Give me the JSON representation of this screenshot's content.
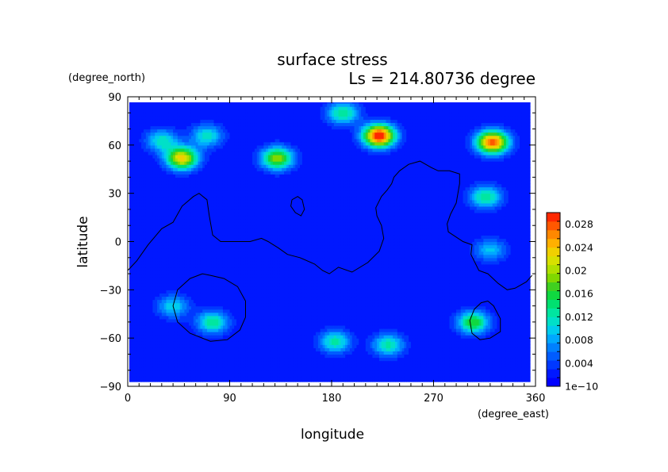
{
  "chart_data": {
    "type": "heatmap",
    "title": "surface stress",
    "subtitle": "Ls = 214.80736 degree",
    "xlabel": "longitude",
    "ylabel": "latitude",
    "x_unit": "(degree_east)",
    "y_unit": "(degree_north)",
    "xlim": [
      0,
      360
    ],
    "ylim": [
      -90,
      90
    ],
    "x_ticks": [
      "0",
      "90",
      "180",
      "270",
      "360"
    ],
    "y_ticks": [
      "90",
      "60",
      "30",
      "0",
      "−30",
      "−60",
      "−90"
    ],
    "colorbar": {
      "range": [
        0,
        0.03
      ],
      "ticks": [
        "1e−10",
        "0.004",
        "0.008",
        "0.012",
        "0.016",
        "0.02",
        "0.024",
        "0.028"
      ],
      "tick_values": [
        0,
        0.004,
        0.008,
        0.012,
        0.016,
        0.02,
        0.024,
        0.028
      ],
      "colors": [
        "#0000ff",
        "#0018ff",
        "#0038ff",
        "#005cff",
        "#0080ff",
        "#00a8ff",
        "#00ccee",
        "#00e0c8",
        "#00e6a0",
        "#00e070",
        "#10d840",
        "#40d020",
        "#80d800",
        "#b0e000",
        "#d8e000",
        "#f0d000",
        "#ffb000",
        "#ff8800",
        "#ff5800",
        "#ff2800"
      ]
    },
    "features": [
      {
        "name": "maximum",
        "lon": 222,
        "lat": 66,
        "value": 0.029
      },
      {
        "name": "maximum",
        "lon": 322,
        "lat": 62,
        "value": 0.027
      },
      {
        "name": "maximum",
        "lon": 48,
        "lat": 52,
        "value": 0.022
      },
      {
        "name": "maximum",
        "lon": 132,
        "lat": 52,
        "value": 0.018
      },
      {
        "name": "maximum",
        "lon": 190,
        "lat": 80,
        "value": 0.012
      },
      {
        "name": "maximum",
        "lon": 70,
        "lat": 66,
        "value": 0.01
      },
      {
        "name": "maximum",
        "lon": 305,
        "lat": -50,
        "value": 0.015
      },
      {
        "name": "maximum",
        "lon": 316,
        "lat": 28,
        "value": 0.012
      },
      {
        "name": "maximum",
        "lon": 75,
        "lat": -50,
        "value": 0.012
      },
      {
        "name": "maximum",
        "lon": 183,
        "lat": -62,
        "value": 0.011
      },
      {
        "name": "maximum",
        "lon": 230,
        "lat": -64,
        "value": 0.011
      },
      {
        "name": "maximum",
        "lon": 320,
        "lat": -5,
        "value": 0.008
      },
      {
        "name": "maximum",
        "lon": 30,
        "lat": 63,
        "value": 0.01
      },
      {
        "name": "maximum",
        "lon": 40,
        "lat": -40,
        "value": 0.009
      }
    ],
    "contours": [
      {
        "name": "topography-line",
        "points": [
          [
            0,
            -18
          ],
          [
            8,
            -12
          ],
          [
            18,
            -2
          ],
          [
            30,
            8
          ],
          [
            40,
            12
          ],
          [
            48,
            22
          ],
          [
            58,
            28
          ],
          [
            63,
            30
          ],
          [
            70,
            26
          ],
          [
            72,
            16
          ],
          [
            75,
            4
          ],
          [
            82,
            0
          ],
          [
            98,
            0
          ],
          [
            108,
            0
          ],
          [
            118,
            2
          ],
          [
            124,
            0
          ],
          [
            133,
            -4
          ],
          [
            141,
            -8
          ],
          [
            152,
            -10
          ],
          [
            165,
            -14
          ],
          [
            172,
            -18
          ],
          [
            178,
            -20
          ],
          [
            186,
            -16
          ],
          [
            198,
            -19
          ],
          [
            212,
            -13
          ],
          [
            222,
            -6
          ],
          [
            226,
            2
          ],
          [
            224,
            10
          ],
          [
            220,
            16
          ],
          [
            219,
            21
          ],
          [
            224,
            28
          ],
          [
            229,
            32
          ],
          [
            233,
            36
          ],
          [
            235,
            40
          ],
          [
            240,
            44
          ],
          [
            248,
            48
          ],
          [
            258,
            50
          ],
          [
            268,
            46
          ],
          [
            274,
            44
          ],
          [
            284,
            44
          ],
          [
            293,
            42
          ],
          [
            293,
            36
          ],
          [
            290,
            24
          ],
          [
            285,
            17
          ],
          [
            282,
            11
          ],
          [
            283,
            6
          ],
          [
            296,
            0
          ],
          [
            304,
            -2
          ],
          [
            303,
            -8
          ],
          [
            310,
            -18
          ],
          [
            318,
            -20
          ],
          [
            327,
            -26
          ],
          [
            335,
            -30
          ],
          [
            342,
            -29
          ],
          [
            352,
            -25
          ],
          [
            357,
            -21
          ]
        ]
      },
      {
        "name": "topography-line",
        "points": [
          [
            145,
            26
          ],
          [
            150,
            28
          ],
          [
            154,
            26
          ],
          [
            156,
            20
          ],
          [
            153,
            16
          ],
          [
            148,
            18
          ],
          [
            144,
            22
          ],
          [
            145,
            26
          ]
        ]
      },
      {
        "name": "topography-line",
        "points": [
          [
            73,
            -21
          ],
          [
            85,
            -23
          ],
          [
            97,
            -28
          ],
          [
            104,
            -37
          ],
          [
            104,
            -47
          ],
          [
            99,
            -55
          ],
          [
            88,
            -61
          ],
          [
            73,
            -62
          ],
          [
            55,
            -57
          ],
          [
            44,
            -50
          ],
          [
            40,
            -40
          ],
          [
            44,
            -30
          ],
          [
            55,
            -23
          ],
          [
            66,
            -20
          ],
          [
            73,
            -21
          ]
        ]
      },
      {
        "name": "topography-line",
        "points": [
          [
            318,
            -37
          ],
          [
            323,
            -40
          ],
          [
            329,
            -48
          ],
          [
            329,
            -56
          ],
          [
            320,
            -60
          ],
          [
            311,
            -61
          ],
          [
            304,
            -57
          ],
          [
            302,
            -49
          ],
          [
            306,
            -42
          ],
          [
            312,
            -38
          ],
          [
            318,
            -37
          ]
        ]
      }
    ]
  }
}
